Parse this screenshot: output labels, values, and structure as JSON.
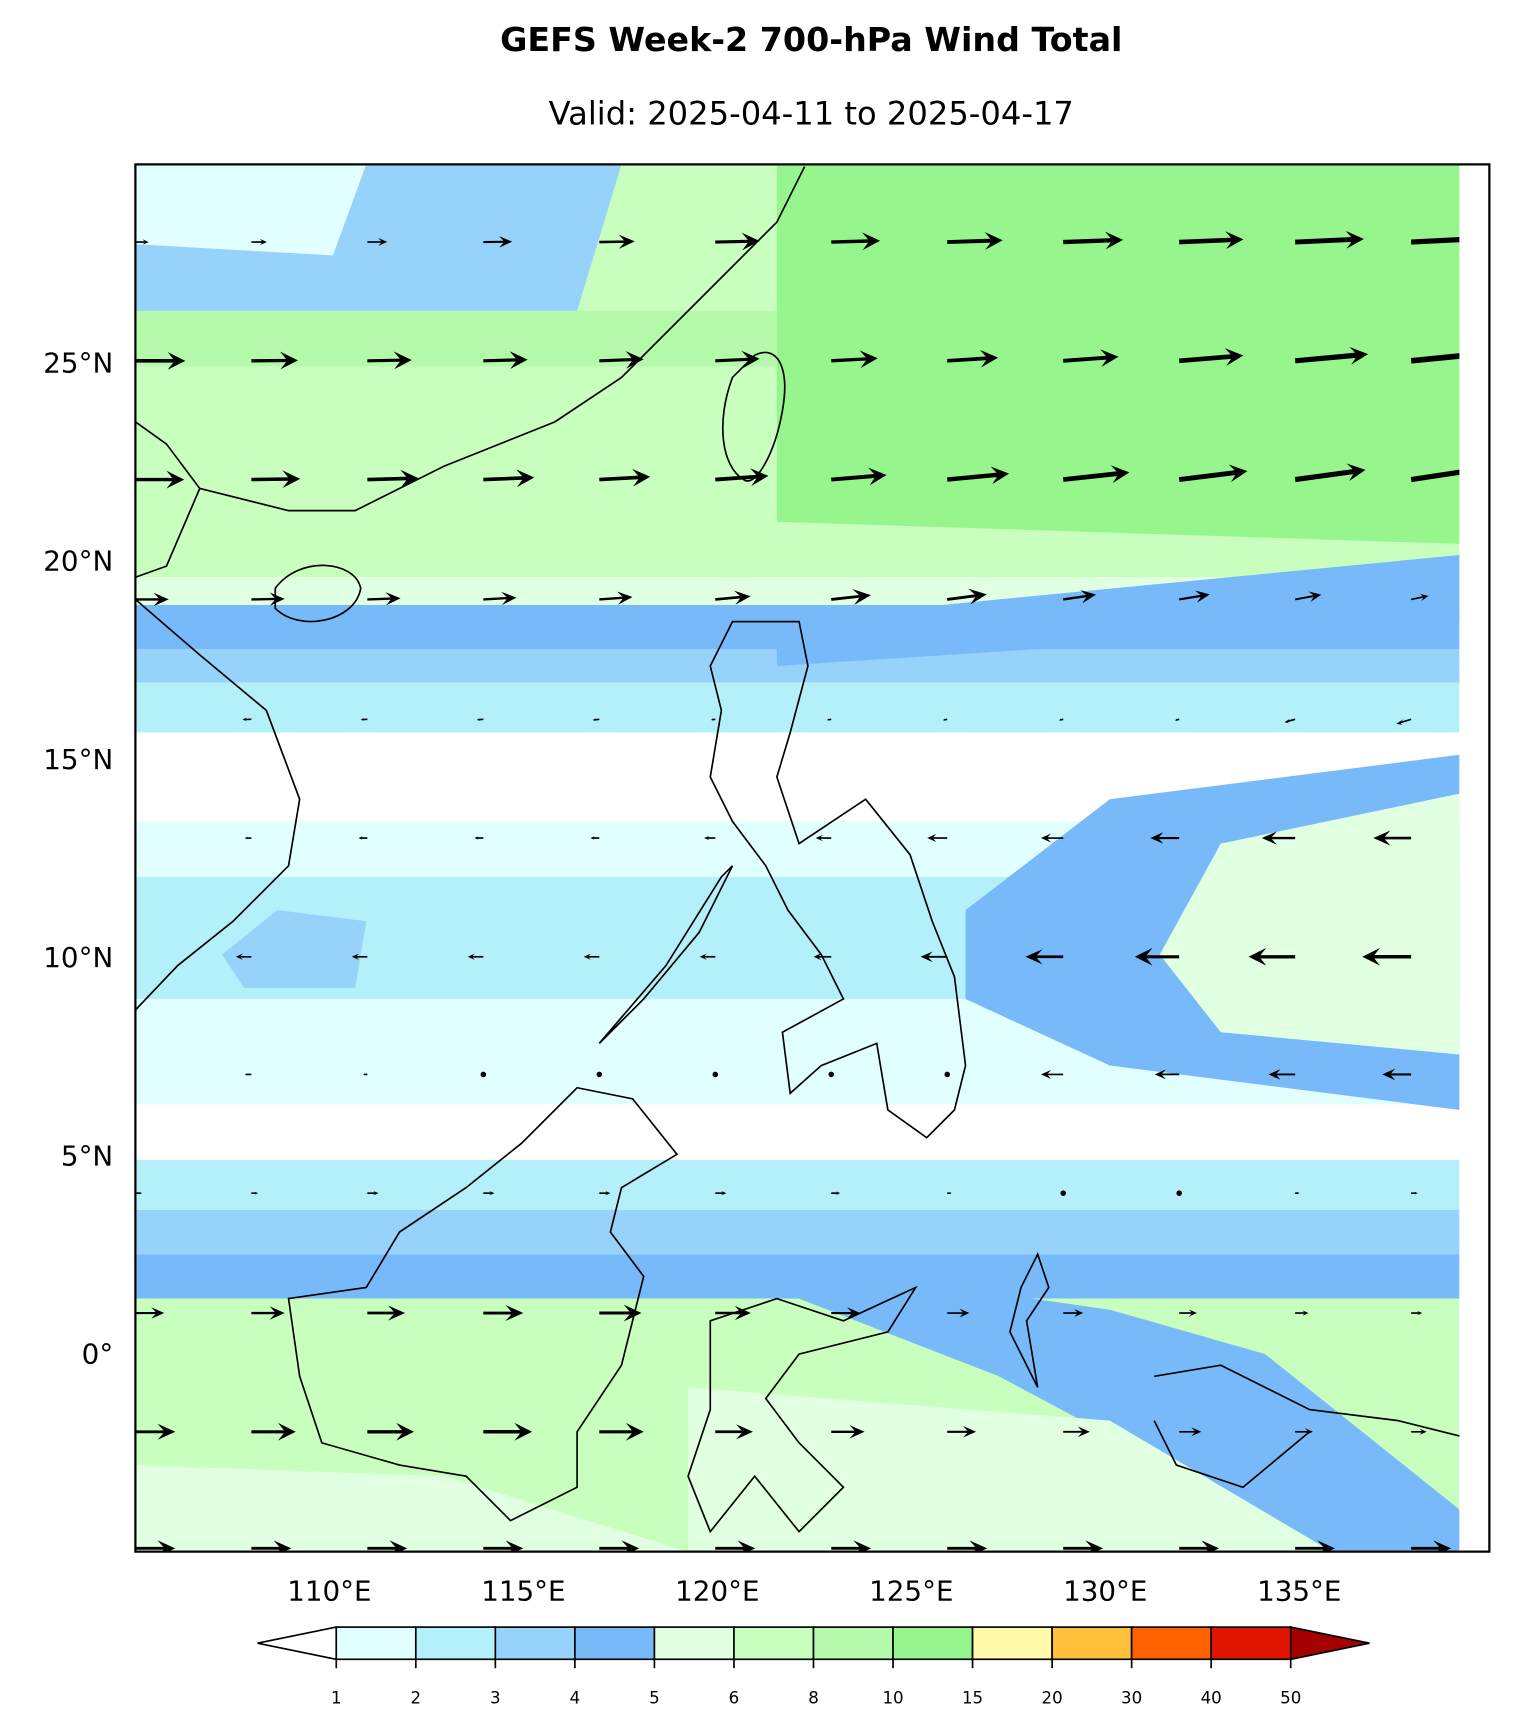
{
  "title": "GEFS Week-2 700-hPa Wind Total",
  "subtitle": "Valid: 2025-04-11 to 2025-04-17",
  "map": {
    "xlim": [
      105,
      139.9
    ],
    "ylim": [
      -5,
      30
    ],
    "yticks": [
      {
        "value": 25,
        "label": "25°N"
      },
      {
        "value": 20,
        "label": "20°N"
      },
      {
        "value": 15,
        "label": "15°N"
      },
      {
        "value": 10,
        "label": "10°N"
      },
      {
        "value": 5,
        "label": "5°N"
      },
      {
        "value": 0,
        "label": "0°"
      }
    ],
    "xticks": [
      {
        "value": 110,
        "label": "110°E"
      },
      {
        "value": 115,
        "label": "115°E"
      },
      {
        "value": 120,
        "label": "120°E"
      },
      {
        "value": 125,
        "label": "125°E"
      },
      {
        "value": 130,
        "label": "130°E"
      },
      {
        "value": 135,
        "label": "135°E"
      }
    ]
  },
  "colorbar": {
    "levels": [
      1,
      2,
      3,
      4,
      5,
      6,
      8,
      10,
      15,
      20,
      30,
      40,
      50
    ],
    "colors": [
      "#e1ffff",
      "#b4f0fa",
      "#96d2fa",
      "#78b9fa",
      "#e1ffe1",
      "#c8ffbe",
      "#b4faaa",
      "#96f58c",
      "#fffaaa",
      "#ffc03c",
      "#ff6000",
      "#e11400"
    ],
    "under_color": "#ffffff",
    "over_color": "#a50000"
  }
}
